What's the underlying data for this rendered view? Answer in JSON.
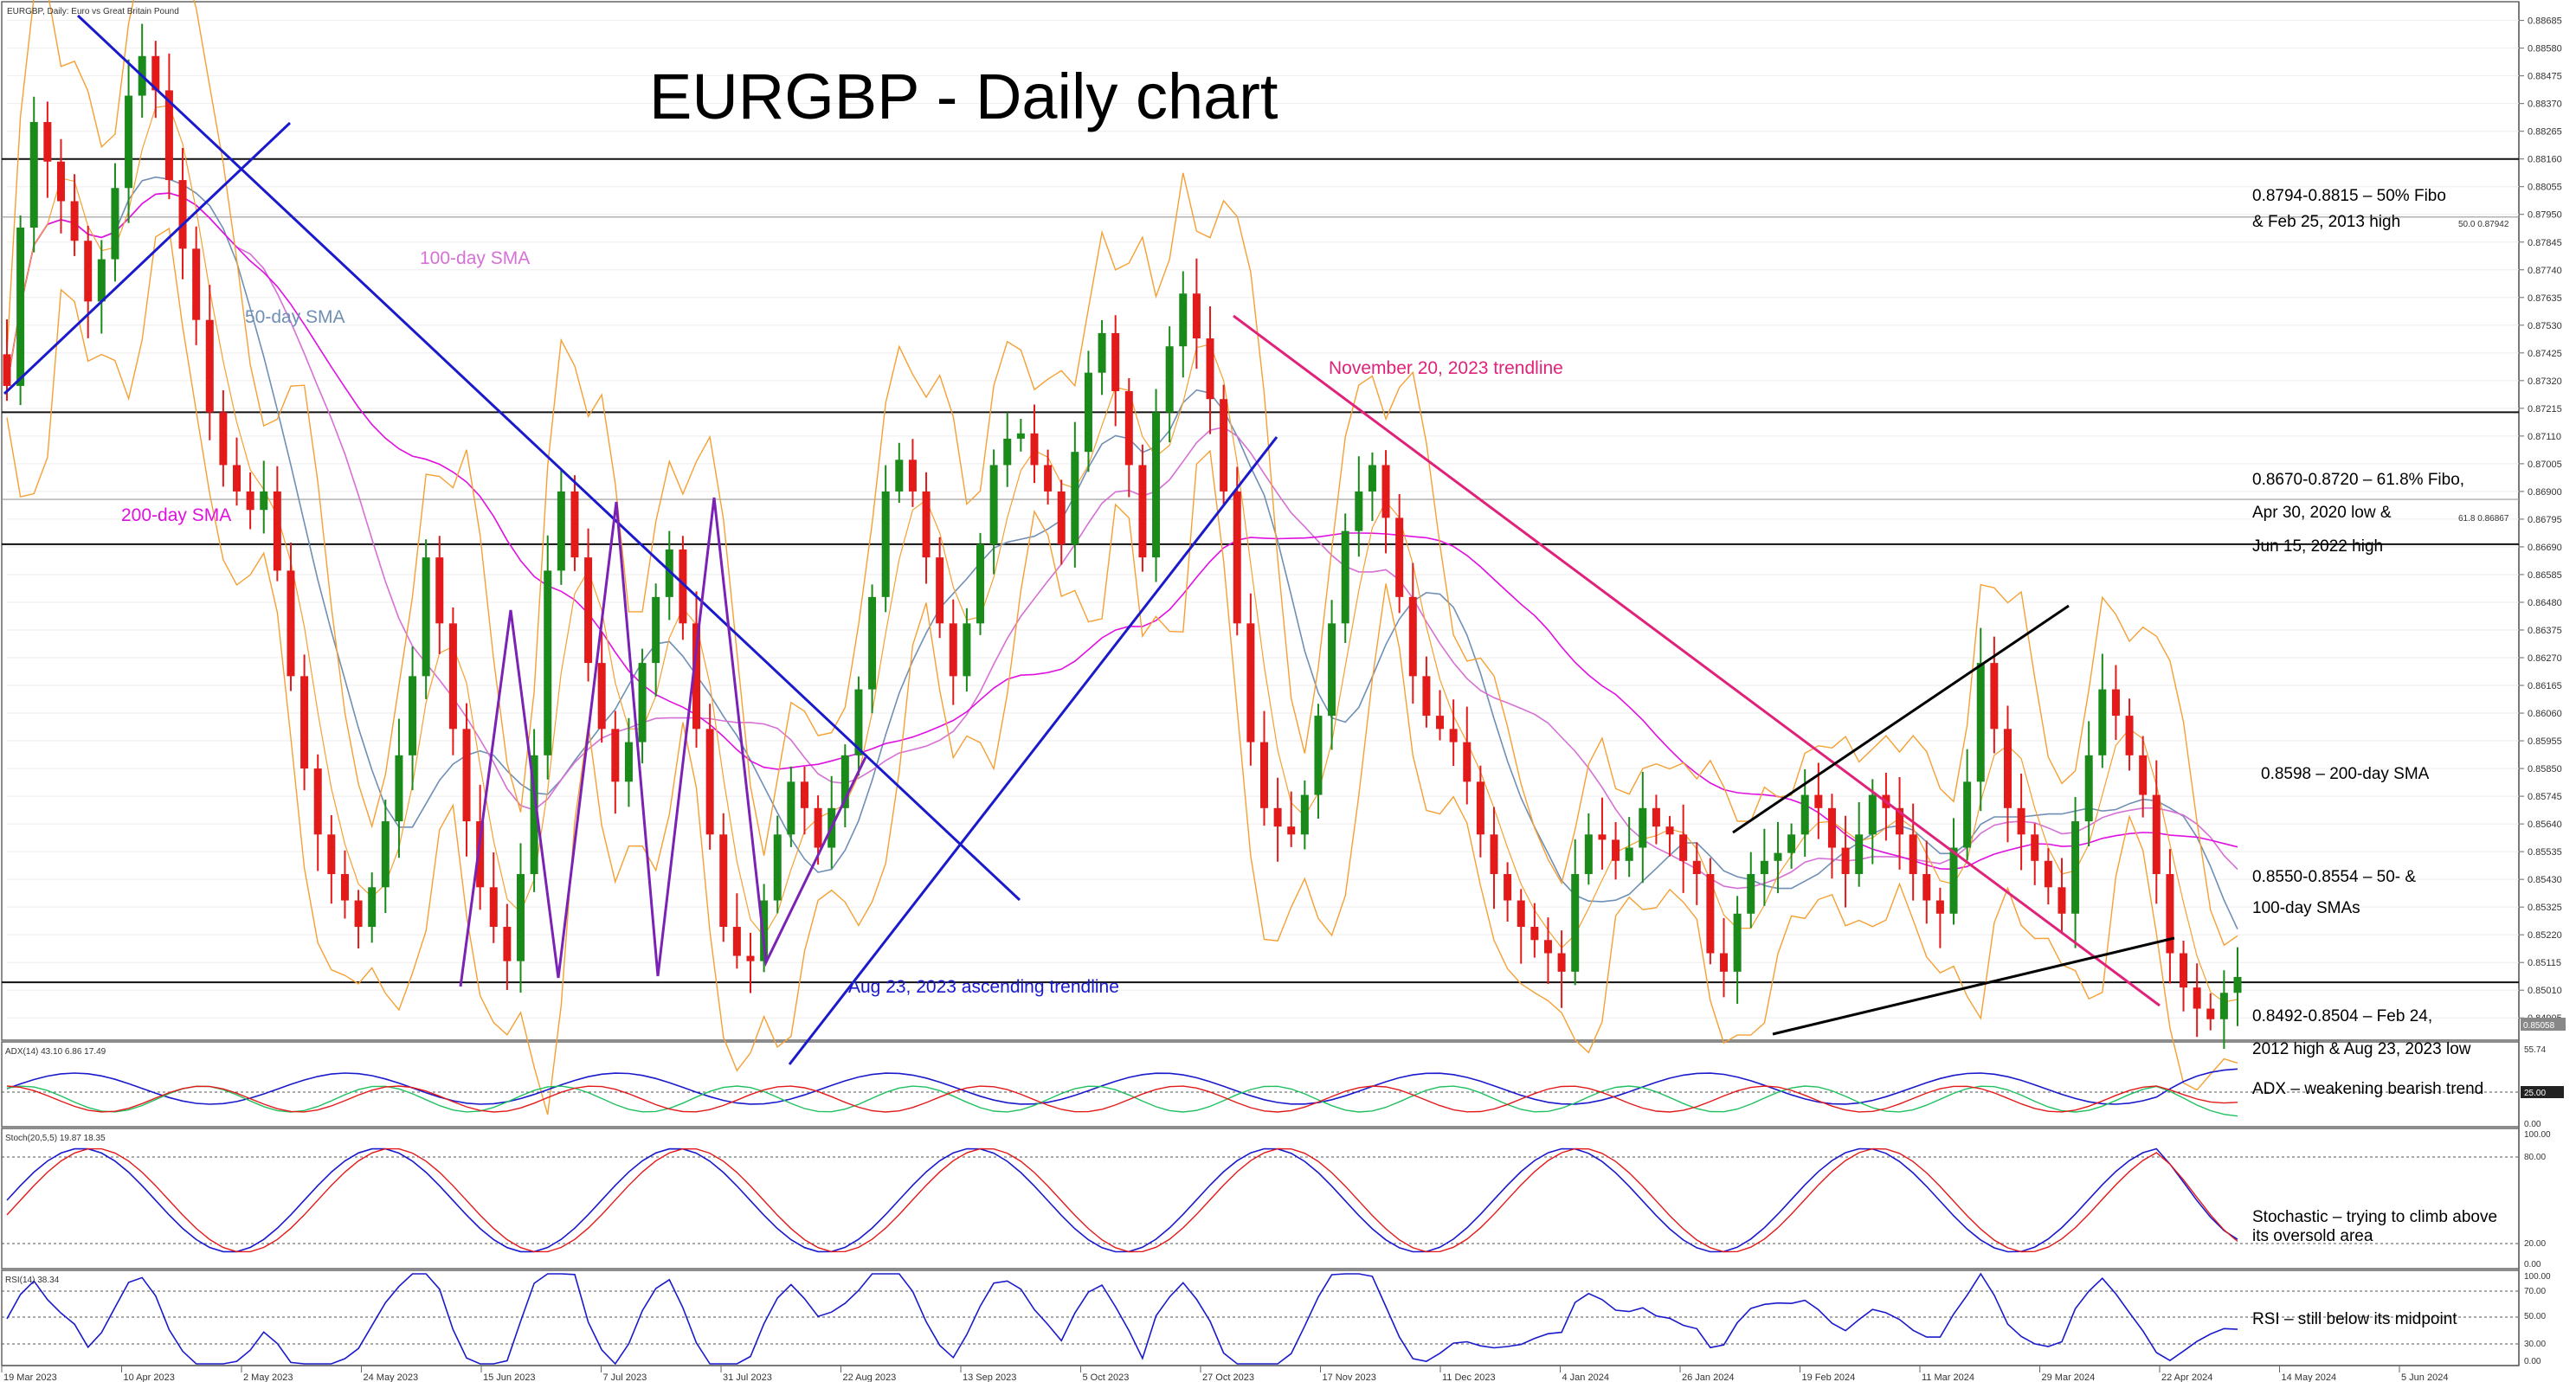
{
  "header": {
    "symbol_label": "EURGBP, Daily:  Euro vs Great Britain Pound",
    "title": "EURGBP - Daily chart"
  },
  "colors": {
    "bull": "#1a8a1a",
    "bear": "#e31a1a",
    "bollinger": "#f5a033",
    "sma50": "#6f8fb5",
    "sma100": "#d670d6",
    "sma200": "#e010e0",
    "trend_blue": "#1a1acc",
    "trend_pink": "#e0227a",
    "wedge_black": "#000000",
    "adx": "#1a1acc",
    "plus_di": "#20c060",
    "minus_di": "#e31a1a",
    "stoch_main": "#1a1acc",
    "stoch_signal": "#e31a1a",
    "rsi": "#1a1acc"
  },
  "chart_data": {
    "type": "candlestick",
    "title": "EURGBP - Daily chart",
    "y_ticks": [
      "0.88685",
      "0.88580",
      "0.88475",
      "0.88370",
      "0.88265",
      "0.88160",
      "0.88055",
      "0.87950",
      "0.87845",
      "0.87740",
      "0.87635",
      "0.87530",
      "0.87425",
      "0.87320",
      "0.87215",
      "0.87110",
      "0.87005",
      "0.86900",
      "0.86795",
      "0.86690",
      "0.86585",
      "0.86480",
      "0.86375",
      "0.86270",
      "0.86165",
      "0.86060",
      "0.85955",
      "0.85850",
      "0.85745",
      "0.85640",
      "0.85535",
      "0.85430",
      "0.85325",
      "0.85220",
      "0.85115",
      "0.85010",
      "0.84905"
    ],
    "ylim": [
      0.8485,
      0.8871
    ],
    "x_ticks": [
      "19 Mar 2023",
      "10 Apr 2023",
      "2 May 2023",
      "24 May 2023",
      "15 Jun 2023",
      "7 Jul 2023",
      "31 Jul 2023",
      "22 Aug 2023",
      "13 Sep 2023",
      "5 Oct 2023",
      "27 Oct 2023",
      "17 Nov 2023",
      "11 Dec 2023",
      "4 Jan 2024",
      "26 Jan 2024",
      "19 Feb 2024",
      "11 Mar 2024",
      "29 Mar 2024",
      "22 Apr 2024",
      "14 May 2024",
      "5 Jun 2024"
    ],
    "last_price": "0.85058",
    "fibo_labels": [
      "50.0 0.87942",
      "61.8 0.86867"
    ],
    "horizontal_levels": [
      0.8816,
      0.8794,
      0.872,
      0.8687,
      0.867,
      0.8504
    ],
    "close_series": [
      0.873,
      0.879,
      0.883,
      0.8815,
      0.88,
      0.8785,
      0.8762,
      0.8778,
      0.8805,
      0.884,
      0.8855,
      0.8842,
      0.8808,
      0.8782,
      0.8755,
      0.872,
      0.87,
      0.869,
      0.8683,
      0.869,
      0.866,
      0.862,
      0.8585,
      0.856,
      0.8545,
      0.8535,
      0.8525,
      0.854,
      0.8565,
      0.859,
      0.862,
      0.8665,
      0.864,
      0.86,
      0.8565,
      0.854,
      0.8525,
      0.8512,
      0.8545,
      0.859,
      0.866,
      0.869,
      0.8665,
      0.8625,
      0.86,
      0.858,
      0.8595,
      0.8625,
      0.865,
      0.8668,
      0.864,
      0.86,
      0.856,
      0.8525,
      0.8514,
      0.8512,
      0.8535,
      0.856,
      0.858,
      0.857,
      0.8555,
      0.857,
      0.859,
      0.8615,
      0.865,
      0.869,
      0.8702,
      0.869,
      0.8665,
      0.864,
      0.862,
      0.864,
      0.867,
      0.87,
      0.871,
      0.8712,
      0.87,
      0.869,
      0.867,
      0.8705,
      0.8735,
      0.875,
      0.8728,
      0.87,
      0.8665,
      0.872,
      0.8745,
      0.8765,
      0.8748,
      0.8725,
      0.869,
      0.864,
      0.8595,
      0.857,
      0.8563,
      0.856,
      0.8575,
      0.8605,
      0.864,
      0.8675,
      0.869,
      0.87,
      0.868,
      0.865,
      0.862,
      0.8605,
      0.86,
      0.8595,
      0.858,
      0.856,
      0.8545,
      0.8535,
      0.8525,
      0.852,
      0.8515,
      0.8508,
      0.8545,
      0.856,
      0.8558,
      0.855,
      0.8555,
      0.857,
      0.8563,
      0.856,
      0.855,
      0.8545,
      0.8515,
      0.8508,
      0.853,
      0.8545,
      0.855,
      0.8553,
      0.856,
      0.8575,
      0.857,
      0.8555,
      0.8545,
      0.856,
      0.8575,
      0.857,
      0.856,
      0.8545,
      0.8535,
      0.853,
      0.8555,
      0.858,
      0.8625,
      0.86,
      0.857,
      0.856,
      0.855,
      0.854,
      0.853,
      0.8565,
      0.859,
      0.8615,
      0.8605,
      0.859,
      0.8575,
      0.8545,
      0.8515,
      0.8502,
      0.8494,
      0.849,
      0.85,
      0.8506
    ],
    "indicators": [
      {
        "name": "ADX(14)",
        "values_label": "ADX(14) 43.10 6.86 17.49",
        "adx": 43.1,
        "plus_di": 6.86,
        "minus_di": 17.49,
        "levels": [
          "55.74",
          "25.00",
          "0.00"
        ]
      },
      {
        "name": "Stoch(20,5,5)",
        "values_label": "Stoch(20,5,5) 19.87 18.35",
        "main": 19.87,
        "signal": 18.35,
        "levels": [
          "100.00",
          "80.00",
          "20.00",
          "0.00"
        ]
      },
      {
        "name": "RSI(14)",
        "values_label": "RSI(14) 38.34",
        "value": 38.34,
        "levels": [
          "100.00",
          "70.00",
          "50.00",
          "30.00",
          "0.00"
        ]
      }
    ]
  },
  "annotations": {
    "sma100_label": "100-day SMA",
    "sma50_label": "50-day SMA",
    "sma200_label": "200-day SMA",
    "nov_trendline": "November 20, 2023 trendline",
    "aug_trendline": "Aug 23, 2023 ascending trendline",
    "fibo50_line1": "0.8794-0.8815 – 50% Fibo",
    "fibo50_line2": "& Feb 25, 2013 high",
    "fibo618_line1": "0.8670-0.8720 – 61.8% Fibo,",
    "fibo618_line2": "Apr 30, 2020 low &",
    "fibo618_line3": "Jun 15, 2022 high",
    "sma200_note": "0.8598 – 200-day SMA",
    "sma50_100_line1": "0.8550-0.8554 – 50- &",
    "sma50_100_line2": "100-day SMAs",
    "support_line1": "0.8492-0.8504 – Feb 24,",
    "support_line2": "2012 high & Aug 23, 2023 low",
    "adx_note": "ADX – weakening bearish trend",
    "stoch_note1": "Stochastic – trying to climb above",
    "stoch_note2": "its oversold area",
    "rsi_note": "RSI – still below its midpoint"
  }
}
